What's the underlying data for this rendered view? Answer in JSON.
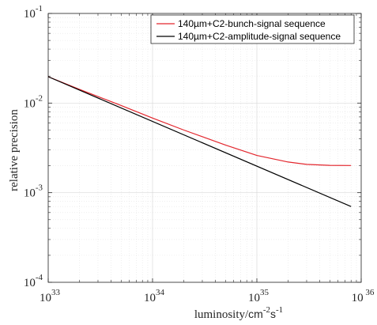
{
  "chart_data": {
    "type": "line",
    "xscale": "log",
    "yscale": "log",
    "xlim": [
      1e+33,
      1e+36
    ],
    "ylim": [
      0.0001,
      0.1
    ],
    "grid": true,
    "legend_position": "top-right",
    "xlabel": {
      "prefix": "luminosity/",
      "unit_base1": "cm",
      "unit_exp1": "-2",
      "unit_base2": "s",
      "unit_exp2": "-1"
    },
    "ylabel": "relative precision",
    "x_ticks": [
      {
        "base": "10",
        "exp": "33",
        "value": 1e+33
      },
      {
        "base": "10",
        "exp": "34",
        "value": 1e+34
      },
      {
        "base": "10",
        "exp": "35",
        "value": 1e+35
      },
      {
        "base": "10",
        "exp": " 36",
        "value": 1e+36
      }
    ],
    "y_ticks": [
      {
        "base": "10",
        "exp": "-4",
        "value": 0.0001
      },
      {
        "base": "10",
        "exp": "-3",
        "value": 0.001
      },
      {
        "base": "10",
        "exp": "-2",
        "value": 0.01
      },
      {
        "base": "10",
        "exp": "-1",
        "value": 0.1
      }
    ],
    "series": [
      {
        "name": "140µm+C2-bunch-signal sequence",
        "color": "#e3262d",
        "x": [
          1e+33,
          2e+33,
          5e+33,
          1e+34,
          2e+34,
          5e+34,
          1e+35,
          2e+35,
          3e+35,
          5e+35,
          8e+35
        ],
        "y": [
          0.0197,
          0.0142,
          0.0094,
          0.0068,
          0.005,
          0.0034,
          0.0026,
          0.0022,
          0.00207,
          0.00202,
          0.00201
        ]
      },
      {
        "name": "140µm+C2-amplitude-signal sequence",
        "color": "#000000",
        "x": [
          1e+33,
          8e+35
        ],
        "y": [
          0.0197,
          0.0007
        ]
      }
    ]
  }
}
